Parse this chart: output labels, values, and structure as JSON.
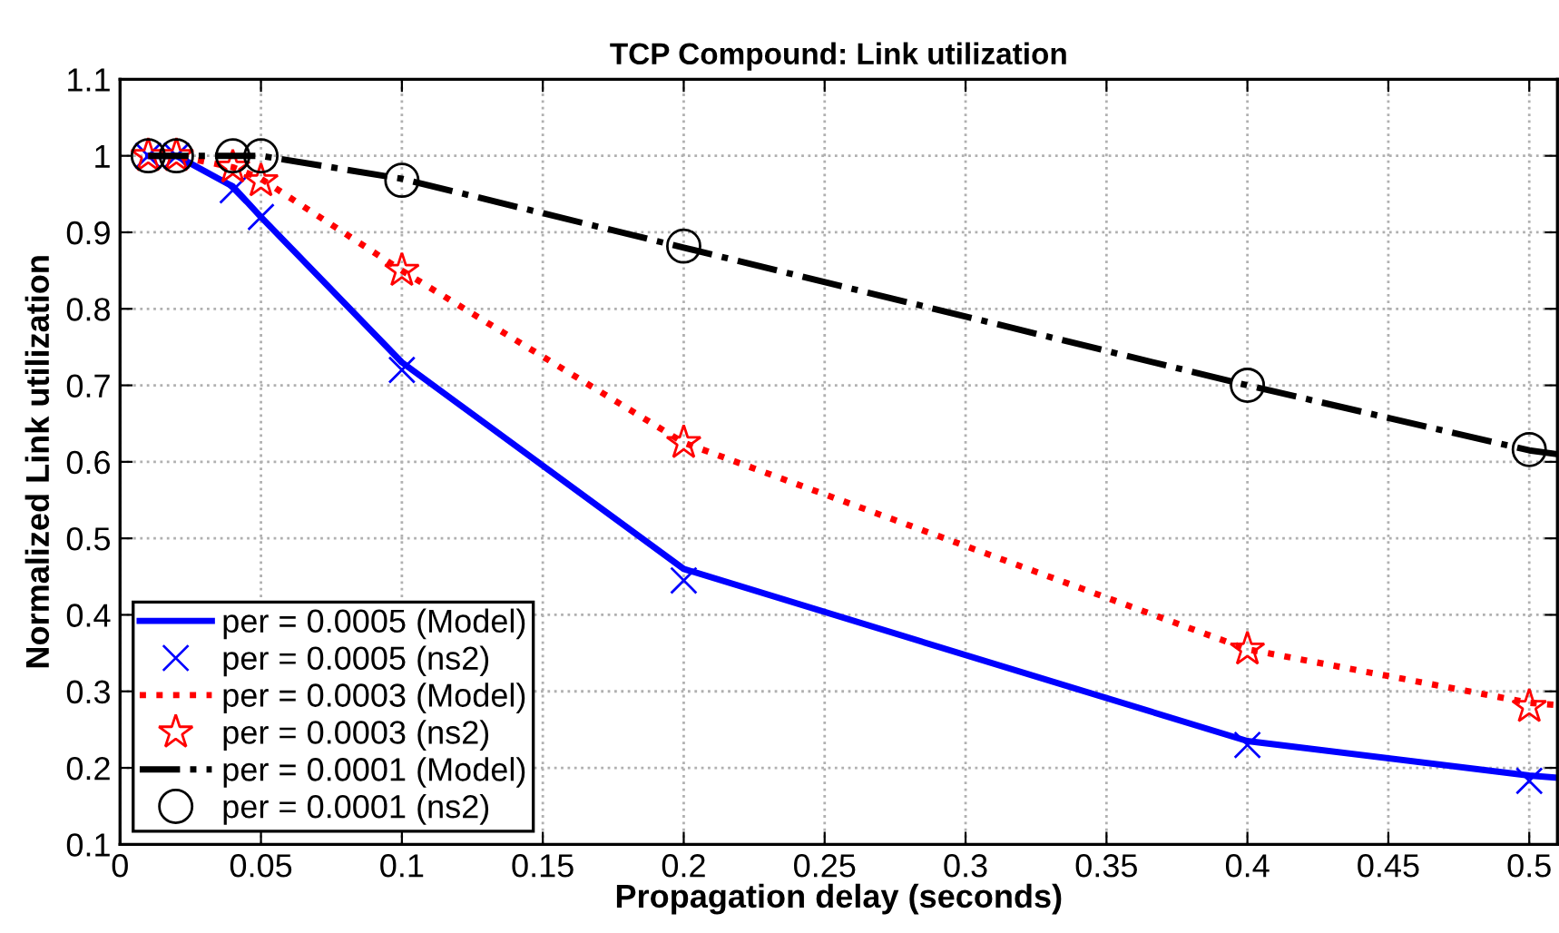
{
  "chart_data": {
    "type": "line",
    "title": "TCP Compound: Link utilization",
    "xlabel": "Propagation delay (seconds)",
    "ylabel": "Normalized Link utilization",
    "xlim": [
      0,
      0.51
    ],
    "ylim": [
      0.1,
      1.1
    ],
    "xticks": [
      0,
      0.05,
      0.1,
      0.15,
      0.2,
      0.25,
      0.3,
      0.35,
      0.4,
      0.45,
      0.5
    ],
    "yticks": [
      0.1,
      0.2,
      0.3,
      0.4,
      0.5,
      0.6,
      0.7,
      0.8,
      0.9,
      1,
      1.1
    ],
    "grid": true,
    "legend": "bottom left",
    "series": [
      {
        "name": "per = 0.0005 (Model)",
        "color": "#0000ff",
        "line_style": "solid",
        "marker": "none",
        "x": [
          0.01,
          0.02,
          0.04,
          0.05,
          0.1,
          0.2,
          0.4,
          0.5,
          0.51
        ],
        "values": [
          1,
          1,
          0.96,
          0.92,
          0.73,
          0.46,
          0.235,
          0.19,
          0.187
        ]
      },
      {
        "name": "per = 0.0005 (ns2)",
        "type": "scatter",
        "color": "#0000ff",
        "marker": "cross",
        "x": [
          0.01,
          0.02,
          0.04,
          0.05,
          0.1,
          0.2,
          0.4,
          0.5
        ],
        "values": [
          1,
          1,
          0.955,
          0.92,
          0.72,
          0.445,
          0.23,
          0.183
        ]
      },
      {
        "name": "per = 0.0003 (Model)",
        "color": "#ff0000",
        "line_style": "dotted",
        "marker": "none",
        "x": [
          0.01,
          0.02,
          0.04,
          0.05,
          0.1,
          0.2,
          0.4,
          0.5,
          0.51
        ],
        "values": [
          1,
          1,
          0.985,
          0.97,
          0.85,
          0.625,
          0.355,
          0.285,
          0.282
        ]
      },
      {
        "name": "per = 0.0003 (ns2)",
        "type": "scatter",
        "color": "#ff0000",
        "marker": "star",
        "x": [
          0.01,
          0.02,
          0.04,
          0.05,
          0.1,
          0.2,
          0.4,
          0.5
        ],
        "values": [
          1,
          1,
          0.985,
          0.967,
          0.85,
          0.625,
          0.355,
          0.28
        ]
      },
      {
        "name": "per = 0.0001 (Model)",
        "color": "#000000",
        "line_style": "dashdot",
        "marker": "none",
        "x": [
          0.01,
          0.02,
          0.04,
          0.05,
          0.1,
          0.2,
          0.4,
          0.5,
          0.51
        ],
        "values": [
          1,
          1,
          1,
          1,
          0.97,
          0.88,
          0.7,
          0.615,
          0.61
        ]
      },
      {
        "name": "per = 0.0001 (ns2)",
        "type": "scatter",
        "color": "#000000",
        "marker": "circle",
        "x": [
          0.01,
          0.02,
          0.04,
          0.05,
          0.1,
          0.2,
          0.4,
          0.5
        ],
        "values": [
          1,
          1,
          1,
          1,
          0.968,
          0.882,
          0.7,
          0.616
        ]
      }
    ]
  }
}
